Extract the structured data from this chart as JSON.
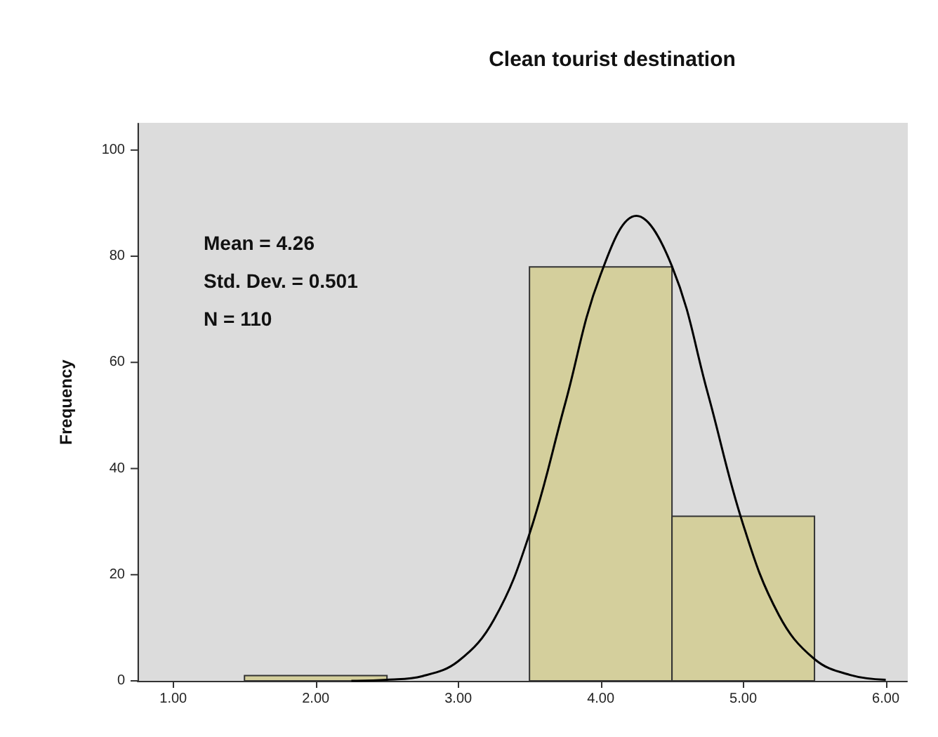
{
  "chart_data": {
    "type": "histogram",
    "title": "Clean tourist destination",
    "ylabel": "Frequency",
    "annotations": [
      "Mean = 4.26",
      "Std. Dev. = 0.501",
      "N = 110"
    ],
    "bins": [
      1.5,
      2.5,
      3.5,
      4.5,
      5.5
    ],
    "values": [
      1,
      0,
      78,
      31
    ],
    "color": "#d4cf9c",
    "series": [
      {
        "type": "line",
        "color": "#000000",
        "x": [
          2.25,
          2.5,
          2.75,
          3.0,
          3.25,
          3.5,
          3.75,
          4.0,
          4.25,
          4.5,
          4.75,
          5.0,
          5.25,
          5.5,
          5.75,
          6.0
        ],
        "values": [
          0,
          0.2,
          0.9,
          3.7,
          11.5,
          27.7,
          52.2,
          76.6,
          87.6,
          78.1,
          54.3,
          29.4,
          12.4,
          4.1,
          1.1,
          0.2
        ]
      }
    ],
    "marker": "none",
    "line_style": "solid",
    "xlim": [
      0.75,
      6.15
    ],
    "xticks": [
      {
        "value": 1,
        "label": "1.00"
      },
      {
        "value": 2,
        "label": "2.00"
      },
      {
        "value": 3,
        "label": "3.00"
      },
      {
        "value": 4,
        "label": "4.00"
      },
      {
        "value": 5,
        "label": "5.00"
      },
      {
        "value": 6,
        "label": "6.00"
      }
    ],
    "ylim": [
      0,
      105
    ],
    "yticks": [
      0,
      20,
      40,
      60,
      80,
      100
    ]
  }
}
